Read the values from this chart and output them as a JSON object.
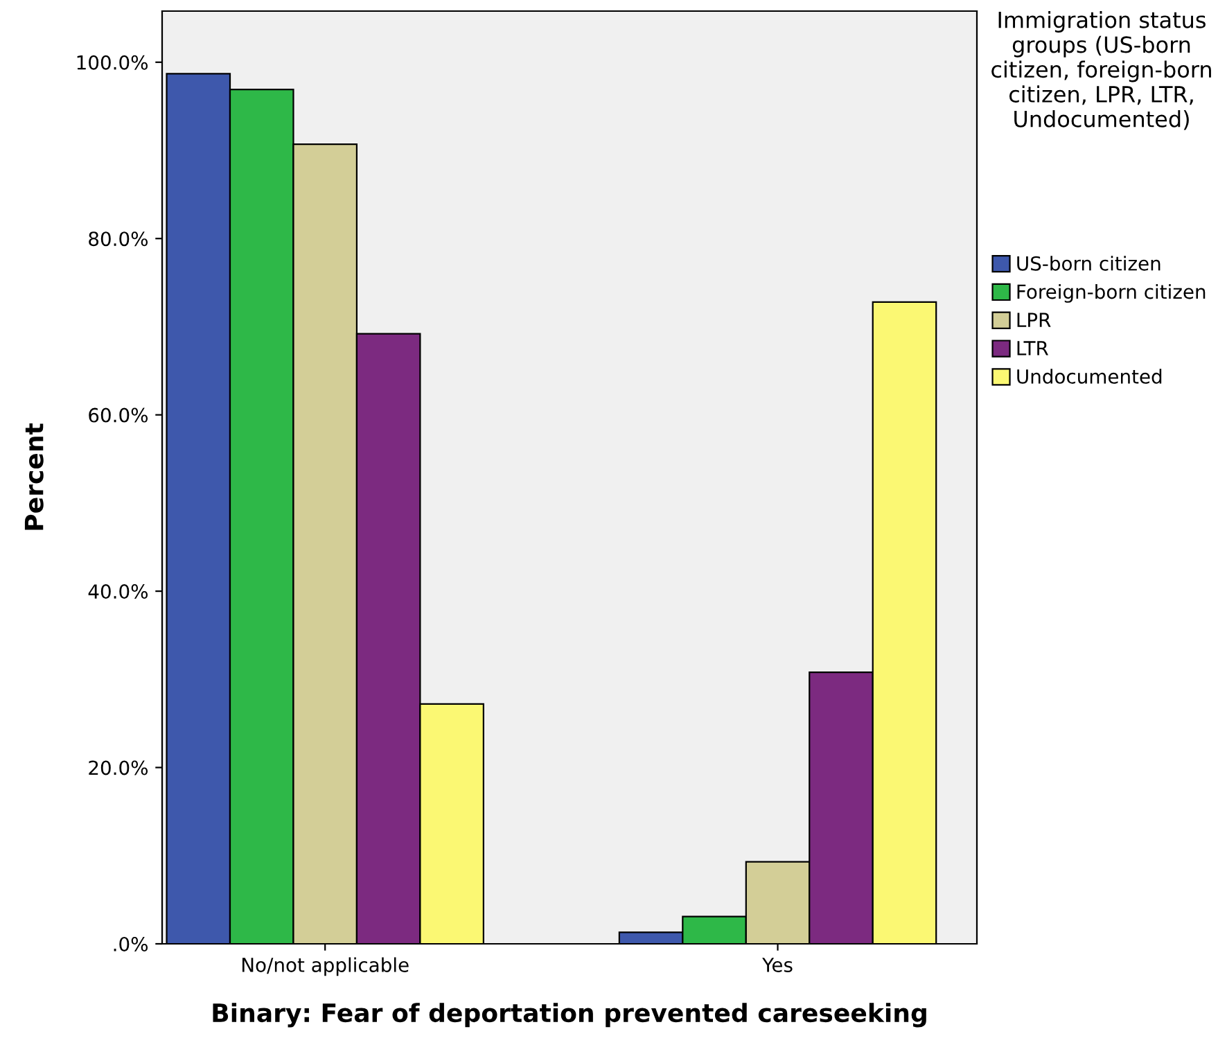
{
  "chart_data": {
    "type": "bar",
    "xlabel": "Binary: Fear of deportation prevented careseeking",
    "ylabel": "Percent",
    "categories": [
      "No/not applicable",
      "Yes"
    ],
    "series": [
      {
        "name": "US-born citizen",
        "color": "#3e58ac",
        "values": [
          98.7,
          1.3
        ]
      },
      {
        "name": "Foreign-born citizen",
        "color": "#2eb848",
        "values": [
          96.9,
          3.1
        ]
      },
      {
        "name": "LPR",
        "color": "#d3ce97",
        "values": [
          90.7,
          9.3
        ]
      },
      {
        "name": "LTR",
        "color": "#7c2a80",
        "values": [
          69.2,
          30.8
        ]
      },
      {
        "name": "Undocumented",
        "color": "#fbf873",
        "values": [
          27.2,
          72.8
        ]
      }
    ],
    "legend_title": "Immigration status groups (US-born citizen, foreign-born citizen, LPR, LTR, Undocumented)",
    "legend": "right",
    "grid": false,
    "ylim": [
      0,
      105.8
    ],
    "yticks": [
      {
        "value": 0,
        "label": ".0%"
      },
      {
        "value": 20,
        "label": "20.0%"
      },
      {
        "value": 40,
        "label": "40.0%"
      },
      {
        "value": 60,
        "label": "60.0%"
      },
      {
        "value": 80,
        "label": "80.0%"
      },
      {
        "value": 100,
        "label": "100.0%"
      }
    ]
  }
}
